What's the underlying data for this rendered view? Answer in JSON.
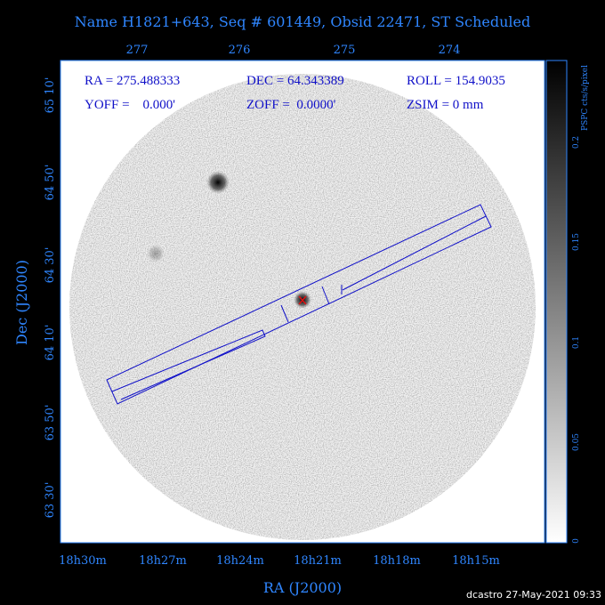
{
  "header": {
    "title": "Name H1821+643, Seq # 601449, Obsid 22471, ST Scheduled"
  },
  "info": {
    "ra": "RA = 275.488333",
    "dec": "DEC = 64.343389",
    "roll": "ROLL = 154.9035",
    "yoff": "YOFF =    0.000'",
    "zoff": "ZOFF =  0.0000'",
    "zsim": "ZSIM = 0 mm"
  },
  "top_axis": {
    "labels": [
      "277",
      "276",
      "275",
      "274"
    ]
  },
  "bottom_axis": {
    "labels": [
      "18h30m",
      "18h27m",
      "18h24m",
      "18h21m",
      "18h18m",
      "18h15m"
    ],
    "title": "RA (J2000)"
  },
  "left_axis": {
    "labels": [
      "65 10'",
      "64 50'",
      "64 30'",
      "64 10'",
      "63 50'",
      "63 30'"
    ],
    "title": "Dec (J2000)"
  },
  "colorbar": {
    "title": "PSPC cts/s/pixel",
    "labels": [
      "0.2",
      "0.15",
      "0.1",
      "0.05",
      "0"
    ]
  },
  "footer": {
    "text": "dcastro 27-May-2021 09:33"
  }
}
